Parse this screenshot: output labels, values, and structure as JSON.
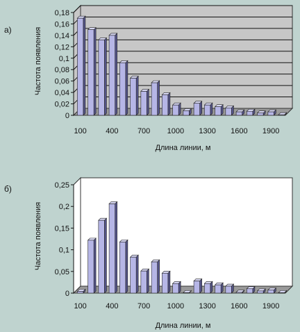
{
  "chart_data": [
    {
      "type": "bar",
      "panel_label": "а)",
      "xlabel": "Длина линии, м",
      "ylabel": "Частота появления",
      "ylim": [
        0,
        0.18
      ],
      "yticks": [
        "0",
        "0,02",
        "0,04",
        "0,06",
        "0,08",
        "0,1",
        "0,12",
        "0,14",
        "0,16",
        "0,18"
      ],
      "categories": [
        100,
        200,
        300,
        400,
        500,
        600,
        700,
        800,
        900,
        1000,
        1100,
        1200,
        1300,
        1400,
        1500,
        1600,
        1700,
        1800,
        1900,
        2000
      ],
      "xticks": [
        "100",
        "400",
        "700",
        "1000",
        "1300",
        "1600",
        "1900"
      ],
      "values": [
        0.17,
        0.15,
        0.132,
        0.14,
        0.092,
        0.065,
        0.042,
        0.057,
        0.036,
        0.018,
        0.008,
        0.021,
        0.018,
        0.015,
        0.013,
        0.006,
        0.007,
        0.004,
        0.006,
        0.001
      ],
      "grid": true,
      "colors": {
        "bar_front": "#b6b6e6",
        "bar_side": "#55558a",
        "bar_top": "#d8d8f4",
        "wall": "#c7c7c7",
        "grid": "#111111"
      }
    },
    {
      "type": "bar",
      "panel_label": "б)",
      "xlabel": "Длина линии, м",
      "ylabel": "Частота появления",
      "ylim": [
        0,
        0.25
      ],
      "yticks": [
        "0",
        "0,05",
        "0,1",
        "0,15",
        "0,2",
        "0,25"
      ],
      "categories": [
        100,
        200,
        300,
        400,
        500,
        600,
        700,
        800,
        900,
        1000,
        1100,
        1200,
        1300,
        1400,
        1500,
        1600,
        1700,
        1800,
        1900,
        2000
      ],
      "xticks": [
        "100",
        "400",
        "700",
        "1000",
        "1300",
        "1600",
        "1900"
      ],
      "values": [
        0.004,
        0.122,
        0.168,
        0.206,
        0.118,
        0.083,
        0.051,
        0.072,
        0.046,
        0.022,
        0.001,
        0.028,
        0.022,
        0.019,
        0.016,
        0.002,
        0.01,
        0.005,
        0.007,
        0.001
      ],
      "grid": false,
      "colors": {
        "bar_front": "#b6b6e6",
        "bar_side": "#55558a",
        "bar_top": "#d8d8f4",
        "wall": "#ffffff",
        "grid": "#111111"
      }
    }
  ]
}
